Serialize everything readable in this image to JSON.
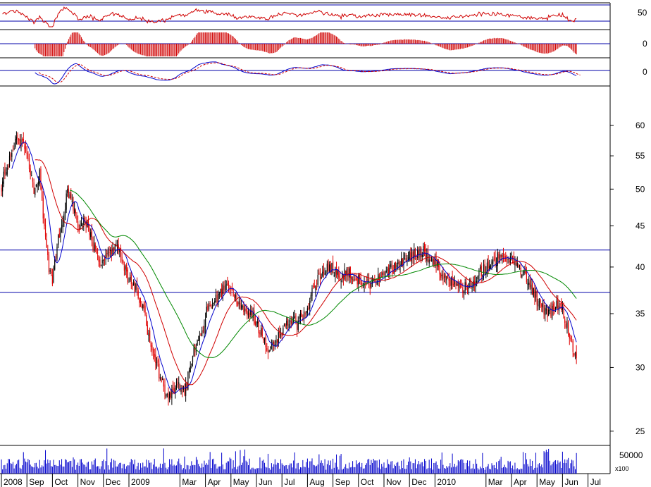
{
  "chart_data": {
    "type": "candlestick",
    "colors": {
      "up": "#000000",
      "down": "#e00000",
      "ma_fast": "#0000cc",
      "ma_mid": "#d00000",
      "ma_slow": "#008800",
      "hline": "#0000aa",
      "osc": "#d00000",
      "volume": "#0000cc"
    },
    "x_axis": {
      "labels": [
        "2008",
        "Sep",
        "Oct",
        "Nov",
        "Dec",
        "2009",
        "Mar",
        "Apr",
        "May",
        "Jun",
        "Jul",
        "Aug",
        "Sep",
        "Oct",
        "Nov",
        "Dec",
        "2010",
        "Mar",
        "Apr",
        "May",
        "Jun",
        "Jul"
      ],
      "month_index": [
        0,
        1,
        2,
        3,
        4,
        5,
        7,
        8,
        9,
        10,
        11,
        12,
        13,
        14,
        15,
        16,
        17,
        19,
        20,
        21,
        22,
        23
      ]
    },
    "price_panel": {
      "scale": "log",
      "ylim": [
        24,
        64
      ],
      "ticks": [
        25,
        30,
        35,
        40,
        45,
        50,
        55,
        60
      ],
      "horizontal_lines": [
        37.2,
        42.0
      ],
      "close_anchors": [
        [
          0,
          50.5
        ],
        [
          0.3,
          54.5
        ],
        [
          0.6,
          57.5
        ],
        [
          0.9,
          56.5
        ],
        [
          1.0,
          55.5
        ],
        [
          1.3,
          49.5
        ],
        [
          1.5,
          52.0
        ],
        [
          1.7,
          44.0
        ],
        [
          1.85,
          40.0
        ],
        [
          2.0,
          38.5
        ],
        [
          2.2,
          43.0
        ],
        [
          2.45,
          46.5
        ],
        [
          2.6,
          50.0
        ],
        [
          2.8,
          47.5
        ],
        [
          3.0,
          44.5
        ],
        [
          3.3,
          45.5
        ],
        [
          3.6,
          42.5
        ],
        [
          3.9,
          40.0
        ],
        [
          4.2,
          41.5
        ],
        [
          4.5,
          42.5
        ],
        [
          4.8,
          40.0
        ],
        [
          5.0,
          38.5
        ],
        [
          5.3,
          37.5
        ],
        [
          5.6,
          35.0
        ],
        [
          5.9,
          31.5
        ],
        [
          6.2,
          29.5
        ],
        [
          6.5,
          27.5
        ],
        [
          6.9,
          28.5
        ],
        [
          7.2,
          28.0
        ],
        [
          7.5,
          31.0
        ],
        [
          7.9,
          33.5
        ],
        [
          8.1,
          36.0
        ],
        [
          8.5,
          36.5
        ],
        [
          8.8,
          38.0
        ],
        [
          9.1,
          36.5
        ],
        [
          9.5,
          35.5
        ],
        [
          9.9,
          34.5
        ],
        [
          10.2,
          33.0
        ],
        [
          10.5,
          31.5
        ],
        [
          10.8,
          32.5
        ],
        [
          11.0,
          33.0
        ],
        [
          11.3,
          34.5
        ],
        [
          11.6,
          34.0
        ],
        [
          12.0,
          35.5
        ],
        [
          12.3,
          38.0
        ],
        [
          12.6,
          39.5
        ],
        [
          12.9,
          40.0
        ],
        [
          13.3,
          39.0
        ],
        [
          13.6,
          39.5
        ],
        [
          14.0,
          38.5
        ],
        [
          14.3,
          38.0
        ],
        [
          14.7,
          38.5
        ],
        [
          15.0,
          39.0
        ],
        [
          15.4,
          40.0
        ],
        [
          15.8,
          41.0
        ],
        [
          16.2,
          41.5
        ],
        [
          16.5,
          42.0
        ],
        [
          16.8,
          41.0
        ],
        [
          17.2,
          39.5
        ],
        [
          17.6,
          38.5
        ],
        [
          18.0,
          37.5
        ],
        [
          18.4,
          38.0
        ],
        [
          18.8,
          39.5
        ],
        [
          19.2,
          40.5
        ],
        [
          19.6,
          41.5
        ],
        [
          20.0,
          41.0
        ],
        [
          20.3,
          40.0
        ],
        [
          20.6,
          38.5
        ],
        [
          21.0,
          36.5
        ],
        [
          21.4,
          35.0
        ],
        [
          21.7,
          35.5
        ],
        [
          21.9,
          36.5
        ],
        [
          22.2,
          33.5
        ],
        [
          22.4,
          31.5
        ],
        [
          22.55,
          30.5
        ]
      ]
    },
    "volume_panel": {
      "ticks": [
        "50000"
      ],
      "unit": "x100"
    },
    "oscillators": [
      {
        "ticks": [
          "50"
        ],
        "reference_line": 0.3
      },
      {
        "ticks": [
          "0"
        ],
        "reference_line": 0.5
      },
      {
        "ticks": [
          "0"
        ],
        "reference_line": 0.55
      }
    ]
  }
}
